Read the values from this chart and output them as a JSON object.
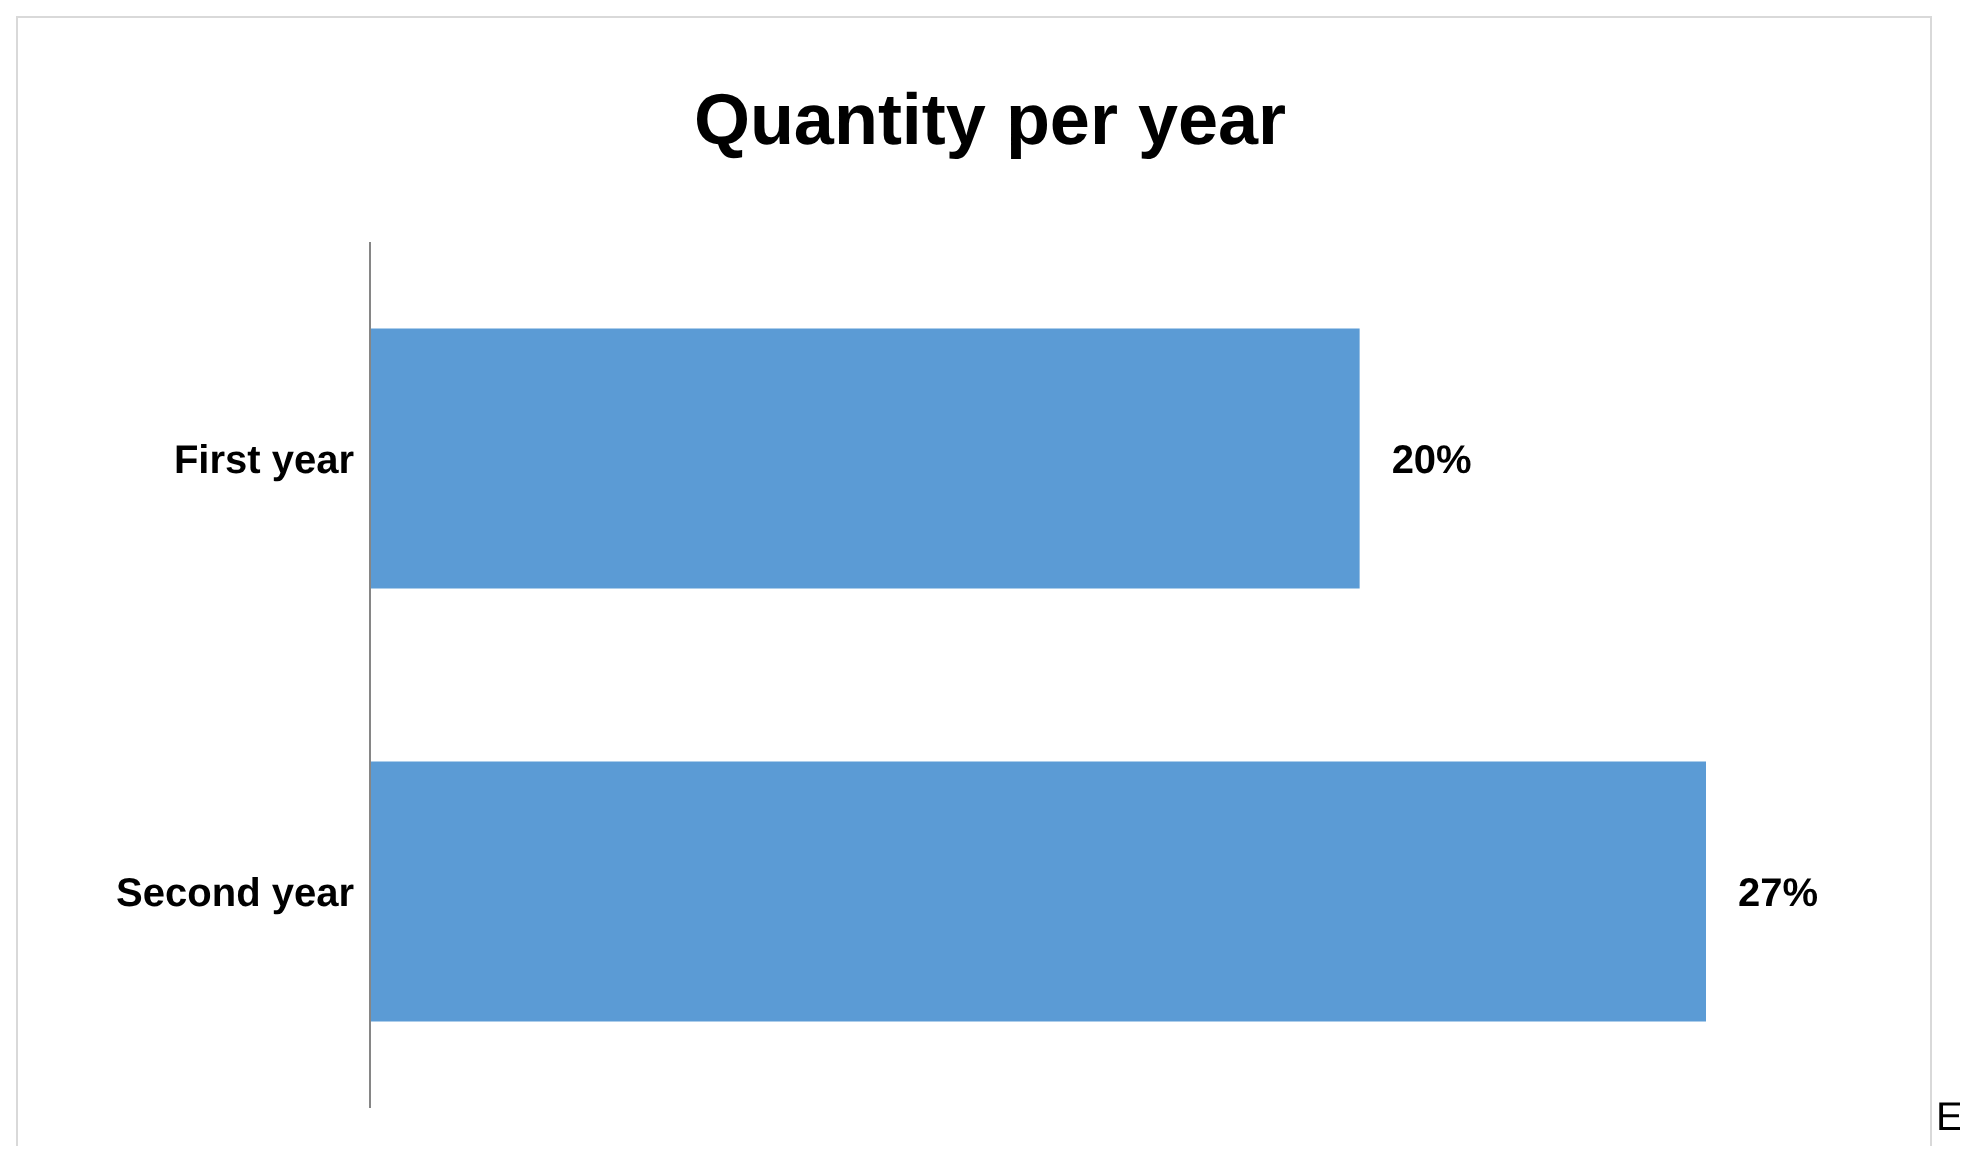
{
  "chart_data": {
    "type": "bar",
    "orientation": "horizontal",
    "title": "Quantity per year",
    "categories": [
      "First year",
      "Second year"
    ],
    "values": [
      20,
      27
    ],
    "color": "#5b9bd5",
    "data_labels": true,
    "value_labels": [
      "20%",
      "27%"
    ],
    "annotations": [
      "E"
    ]
  }
}
